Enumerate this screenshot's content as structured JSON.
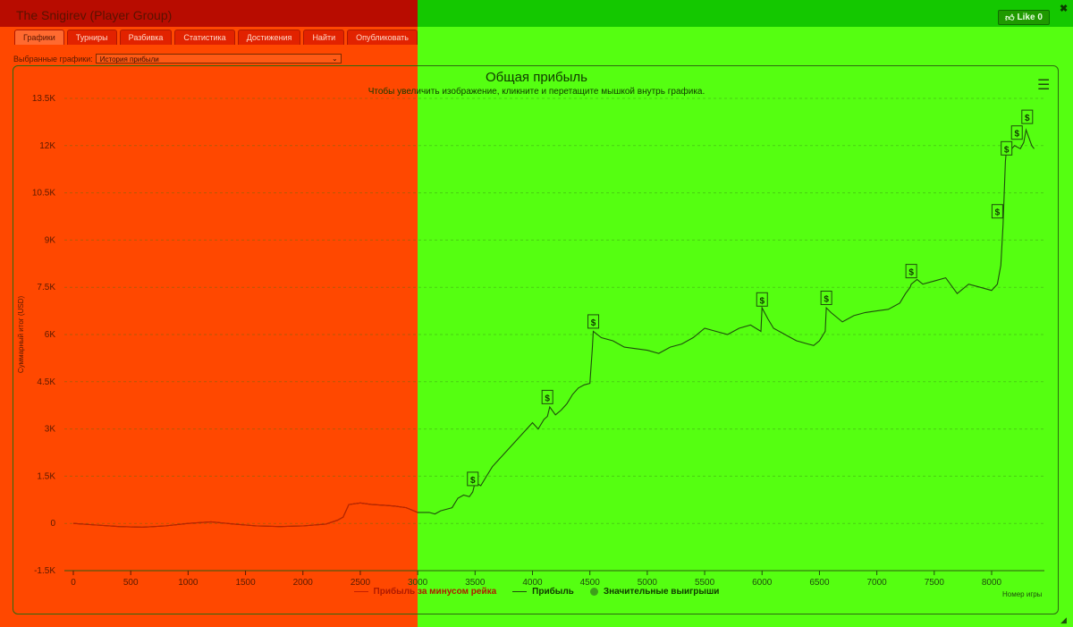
{
  "window": {
    "title": "The Snigirev (Player Group)",
    "like_label": "Like 0"
  },
  "tabs": [
    {
      "label": "Графики",
      "active": true
    },
    {
      "label": "Турниры"
    },
    {
      "label": "Разбивка"
    },
    {
      "label": "Статистика"
    },
    {
      "label": "Достижения"
    },
    {
      "label": "Найти"
    },
    {
      "label": "Опубликовать"
    }
  ],
  "selector": {
    "label": "Выбранные графики:",
    "value": "История прибыли"
  },
  "colors": {
    "left_overlay": "#ff4800",
    "right_overlay": "#55ff11",
    "profit_line": "#1e4d0c",
    "rake_line": "#c41f00",
    "wins_marker": "#3da11a"
  },
  "chart_data": {
    "type": "line",
    "title": "Общая прибыль",
    "subtitle": "Чтобы увеличить изображение, кликните и перетащите мышкой внутрь графика.",
    "xlabel": "Номер игры",
    "ylabel": "Суммарный итог (USD)",
    "xlim": [
      0,
      8500
    ],
    "ylim": [
      -1500,
      13500
    ],
    "x_ticks": [
      0,
      500,
      1000,
      1500,
      2000,
      2500,
      3000,
      3500,
      4000,
      4500,
      5000,
      5500,
      6000,
      6500,
      7000,
      7500,
      8000
    ],
    "x_tick_labels": [
      "0",
      "500",
      "1000",
      "1500",
      "2000",
      "2500",
      "3000",
      "3500",
      "4000",
      "4500",
      "5000",
      "5500",
      "6000",
      "6500",
      "7000",
      "7500",
      "8000"
    ],
    "y_ticks": [
      -1500,
      0,
      1500,
      3000,
      4500,
      6000,
      7500,
      9000,
      10500,
      12000,
      13500
    ],
    "y_tick_labels": [
      "-1.5K",
      "0",
      "1.5K",
      "3K",
      "4.5K",
      "6K",
      "7.5K",
      "9K",
      "10.5K",
      "12K",
      "13.5K"
    ],
    "grid": true,
    "legend_position": "bottom",
    "series": [
      {
        "name": "Прибыль",
        "x": [
          0,
          200,
          400,
          600,
          800,
          1000,
          1200,
          1400,
          1600,
          1800,
          2000,
          2200,
          2300,
          2350,
          2400,
          2500,
          2600,
          2700,
          2800,
          2900,
          3000,
          3100,
          3150,
          3200,
          3250,
          3300,
          3350,
          3400,
          3450,
          3480,
          3500,
          3550,
          3600,
          3650,
          3700,
          3750,
          3800,
          3850,
          3900,
          3950,
          4000,
          4050,
          4100,
          4130,
          4150,
          4200,
          4250,
          4300,
          4350,
          4400,
          4450,
          4500,
          4520,
          4530,
          4600,
          4700,
          4800,
          4900,
          5000,
          5100,
          5200,
          5300,
          5400,
          5500,
          5600,
          5700,
          5800,
          5900,
          5990,
          6000,
          6050,
          6100,
          6200,
          6300,
          6400,
          6450,
          6500,
          6550,
          6560,
          6600,
          6700,
          6800,
          6900,
          7000,
          7100,
          7200,
          7250,
          7290,
          7300,
          7350,
          7400,
          7500,
          7600,
          7700,
          7800,
          7900,
          8000,
          8050,
          8080,
          8100,
          8120,
          8130,
          8150,
          8200,
          8250,
          8280,
          8300,
          8350,
          8370
        ],
        "values": [
          0,
          -50,
          -100,
          -120,
          -80,
          0,
          50,
          -20,
          -80,
          -100,
          -80,
          -20,
          100,
          200,
          600,
          650,
          600,
          580,
          550,
          500,
          350,
          350,
          300,
          400,
          450,
          500,
          800,
          900,
          850,
          1000,
          1300,
          1200,
          1500,
          1800,
          2000,
          2200,
          2400,
          2600,
          2800,
          3000,
          3200,
          3000,
          3300,
          3400,
          3700,
          3450,
          3600,
          3800,
          4100,
          4300,
          4400,
          4450,
          5500,
          6100,
          5900,
          5800,
          5600,
          5550,
          5500,
          5400,
          5600,
          5700,
          5900,
          6200,
          6100,
          6000,
          6200,
          6300,
          6100,
          6850,
          6500,
          6200,
          6000,
          5800,
          5700,
          5650,
          5800,
          6100,
          6850,
          6700,
          6400,
          6600,
          6700,
          6750,
          6800,
          7000,
          7300,
          7500,
          7600,
          7750,
          7600,
          7700,
          7800,
          7300,
          7600,
          7500,
          7400,
          7600,
          8200,
          9500,
          11500,
          11900,
          11800,
          12000,
          11900,
          12100,
          12500,
          12000,
          11900
        ]
      },
      {
        "name": "Прибыль за минусом рейка",
        "x": [
          0,
          200,
          400,
          600,
          800,
          1000,
          1200,
          1400,
          1600,
          1800,
          2000,
          2200,
          2300,
          2350,
          2400,
          2500,
          2600,
          2700,
          2800,
          2900,
          3000
        ],
        "values": [
          0,
          -50,
          -100,
          -120,
          -80,
          0,
          50,
          -20,
          -80,
          -100,
          -80,
          -20,
          100,
          200,
          600,
          650,
          600,
          580,
          550,
          500,
          350
        ]
      },
      {
        "name": "Значительные выигрыши",
        "marker_label": "$",
        "x": [
          3480,
          4130,
          4530,
          6000,
          6560,
          7300,
          8050,
          8130,
          8220,
          8310
        ],
        "values": [
          1400,
          4000,
          6400,
          7100,
          7150,
          8000,
          9900,
          11900,
          12400,
          12900
        ]
      }
    ]
  }
}
